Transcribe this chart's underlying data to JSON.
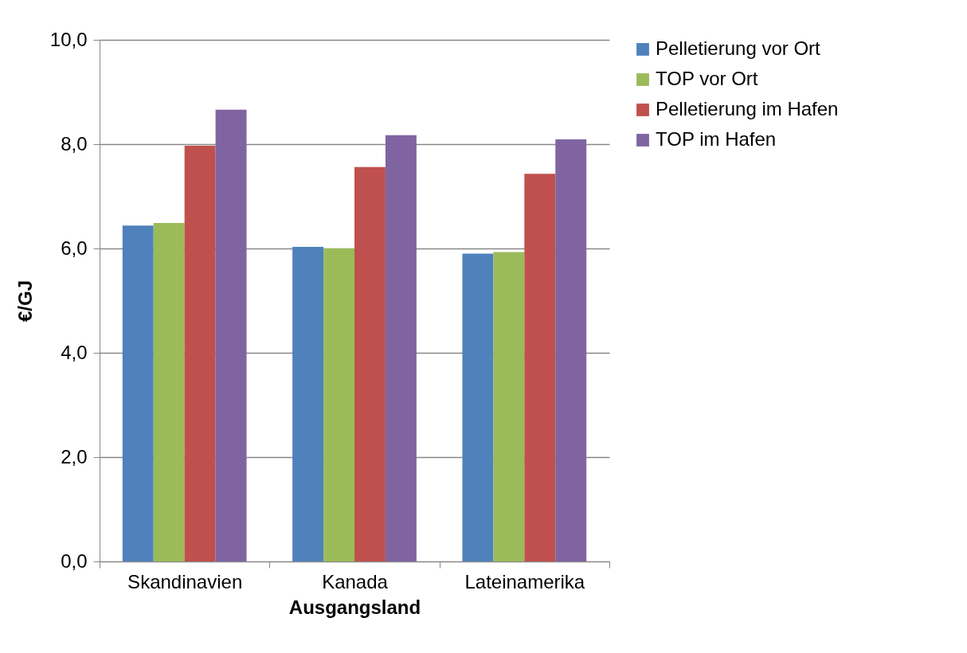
{
  "chart_data": {
    "type": "bar",
    "xlabel": "Ausgangsland",
    "ylabel": "€/GJ",
    "categories": [
      "Skandinavien",
      "Kanada",
      "Lateinamerika"
    ],
    "series": [
      {
        "name": "Pelletierung vor Ort",
        "color": "#4f81bd",
        "values": [
          6.44,
          6.03,
          5.9
        ]
      },
      {
        "name": "TOP vor Ort",
        "color": "#9bbb59",
        "values": [
          6.49,
          6.0,
          5.93
        ]
      },
      {
        "name": "Pelletierung im Hafen",
        "color": "#c0504d",
        "values": [
          7.97,
          7.56,
          7.43
        ]
      },
      {
        "name": "TOP im Hafen",
        "color": "#8064a2",
        "values": [
          8.66,
          8.17,
          8.09
        ]
      }
    ],
    "ylim": [
      0,
      10
    ],
    "yticks": [
      {
        "value": 0,
        "label": "0,0"
      },
      {
        "value": 2,
        "label": "2,0"
      },
      {
        "value": 4,
        "label": "4,0"
      },
      {
        "value": 6,
        "label": "6,0"
      },
      {
        "value": 8,
        "label": "8,0"
      },
      {
        "value": 10,
        "label": "10,0"
      }
    ],
    "grid": "y",
    "legend": "right"
  }
}
